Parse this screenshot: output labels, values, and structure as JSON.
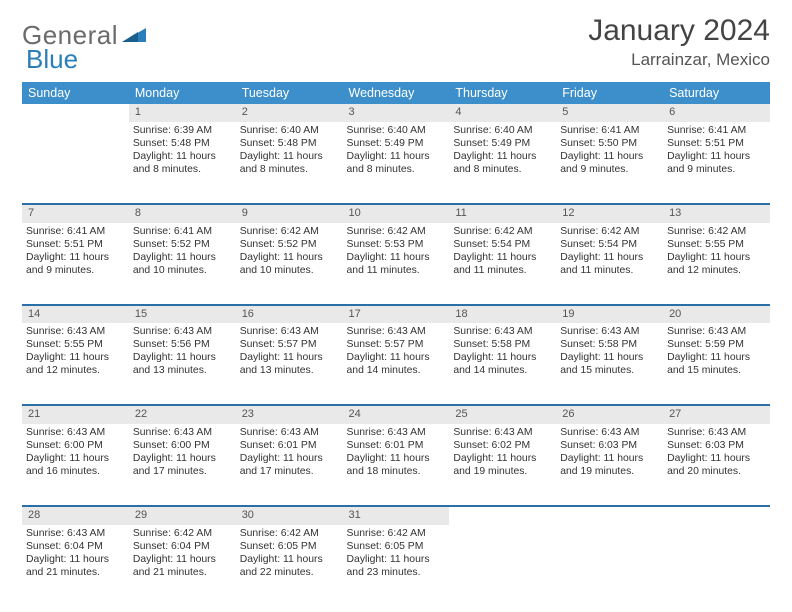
{
  "brand": {
    "part1": "General",
    "part2": "Blue",
    "accent": "#2a7fba",
    "grey": "#6b6b6b"
  },
  "title": "January 2024",
  "location": "Larrainzar, Mexico",
  "header_bg": "#3c8fca",
  "daynum_bg": "#e9e9e9",
  "separator_color": "#2a6fa8",
  "text_color": "#333333",
  "background": "#ffffff",
  "font_size_body": 10.4,
  "font_size_header": 12.5,
  "font_size_title": 30,
  "font_size_location": 17,
  "columns": [
    "Sunday",
    "Monday",
    "Tuesday",
    "Wednesday",
    "Thursday",
    "Friday",
    "Saturday"
  ],
  "weeks": [
    {
      "nums": [
        "",
        "1",
        "2",
        "3",
        "4",
        "5",
        "6"
      ],
      "cells": [
        [],
        [
          "Sunrise: 6:39 AM",
          "Sunset: 5:48 PM",
          "Daylight: 11 hours and 8 minutes."
        ],
        [
          "Sunrise: 6:40 AM",
          "Sunset: 5:48 PM",
          "Daylight: 11 hours and 8 minutes."
        ],
        [
          "Sunrise: 6:40 AM",
          "Sunset: 5:49 PM",
          "Daylight: 11 hours and 8 minutes."
        ],
        [
          "Sunrise: 6:40 AM",
          "Sunset: 5:49 PM",
          "Daylight: 11 hours and 8 minutes."
        ],
        [
          "Sunrise: 6:41 AM",
          "Sunset: 5:50 PM",
          "Daylight: 11 hours and 9 minutes."
        ],
        [
          "Sunrise: 6:41 AM",
          "Sunset: 5:51 PM",
          "Daylight: 11 hours and 9 minutes."
        ]
      ]
    },
    {
      "nums": [
        "7",
        "8",
        "9",
        "10",
        "11",
        "12",
        "13"
      ],
      "cells": [
        [
          "Sunrise: 6:41 AM",
          "Sunset: 5:51 PM",
          "Daylight: 11 hours and 9 minutes."
        ],
        [
          "Sunrise: 6:41 AM",
          "Sunset: 5:52 PM",
          "Daylight: 11 hours and 10 minutes."
        ],
        [
          "Sunrise: 6:42 AM",
          "Sunset: 5:52 PM",
          "Daylight: 11 hours and 10 minutes."
        ],
        [
          "Sunrise: 6:42 AM",
          "Sunset: 5:53 PM",
          "Daylight: 11 hours and 11 minutes."
        ],
        [
          "Sunrise: 6:42 AM",
          "Sunset: 5:54 PM",
          "Daylight: 11 hours and 11 minutes."
        ],
        [
          "Sunrise: 6:42 AM",
          "Sunset: 5:54 PM",
          "Daylight: 11 hours and 11 minutes."
        ],
        [
          "Sunrise: 6:42 AM",
          "Sunset: 5:55 PM",
          "Daylight: 11 hours and 12 minutes."
        ]
      ]
    },
    {
      "nums": [
        "14",
        "15",
        "16",
        "17",
        "18",
        "19",
        "20"
      ],
      "cells": [
        [
          "Sunrise: 6:43 AM",
          "Sunset: 5:55 PM",
          "Daylight: 11 hours and 12 minutes."
        ],
        [
          "Sunrise: 6:43 AM",
          "Sunset: 5:56 PM",
          "Daylight: 11 hours and 13 minutes."
        ],
        [
          "Sunrise: 6:43 AM",
          "Sunset: 5:57 PM",
          "Daylight: 11 hours and 13 minutes."
        ],
        [
          "Sunrise: 6:43 AM",
          "Sunset: 5:57 PM",
          "Daylight: 11 hours and 14 minutes."
        ],
        [
          "Sunrise: 6:43 AM",
          "Sunset: 5:58 PM",
          "Daylight: 11 hours and 14 minutes."
        ],
        [
          "Sunrise: 6:43 AM",
          "Sunset: 5:58 PM",
          "Daylight: 11 hours and 15 minutes."
        ],
        [
          "Sunrise: 6:43 AM",
          "Sunset: 5:59 PM",
          "Daylight: 11 hours and 15 minutes."
        ]
      ]
    },
    {
      "nums": [
        "21",
        "22",
        "23",
        "24",
        "25",
        "26",
        "27"
      ],
      "cells": [
        [
          "Sunrise: 6:43 AM",
          "Sunset: 6:00 PM",
          "Daylight: 11 hours and 16 minutes."
        ],
        [
          "Sunrise: 6:43 AM",
          "Sunset: 6:00 PM",
          "Daylight: 11 hours and 17 minutes."
        ],
        [
          "Sunrise: 6:43 AM",
          "Sunset: 6:01 PM",
          "Daylight: 11 hours and 17 minutes."
        ],
        [
          "Sunrise: 6:43 AM",
          "Sunset: 6:01 PM",
          "Daylight: 11 hours and 18 minutes."
        ],
        [
          "Sunrise: 6:43 AM",
          "Sunset: 6:02 PM",
          "Daylight: 11 hours and 19 minutes."
        ],
        [
          "Sunrise: 6:43 AM",
          "Sunset: 6:03 PM",
          "Daylight: 11 hours and 19 minutes."
        ],
        [
          "Sunrise: 6:43 AM",
          "Sunset: 6:03 PM",
          "Daylight: 11 hours and 20 minutes."
        ]
      ]
    },
    {
      "nums": [
        "28",
        "29",
        "30",
        "31",
        "",
        "",
        ""
      ],
      "cells": [
        [
          "Sunrise: 6:43 AM",
          "Sunset: 6:04 PM",
          "Daylight: 11 hours and 21 minutes."
        ],
        [
          "Sunrise: 6:42 AM",
          "Sunset: 6:04 PM",
          "Daylight: 11 hours and 21 minutes."
        ],
        [
          "Sunrise: 6:42 AM",
          "Sunset: 6:05 PM",
          "Daylight: 11 hours and 22 minutes."
        ],
        [
          "Sunrise: 6:42 AM",
          "Sunset: 6:05 PM",
          "Daylight: 11 hours and 23 minutes."
        ],
        [],
        [],
        []
      ]
    }
  ]
}
